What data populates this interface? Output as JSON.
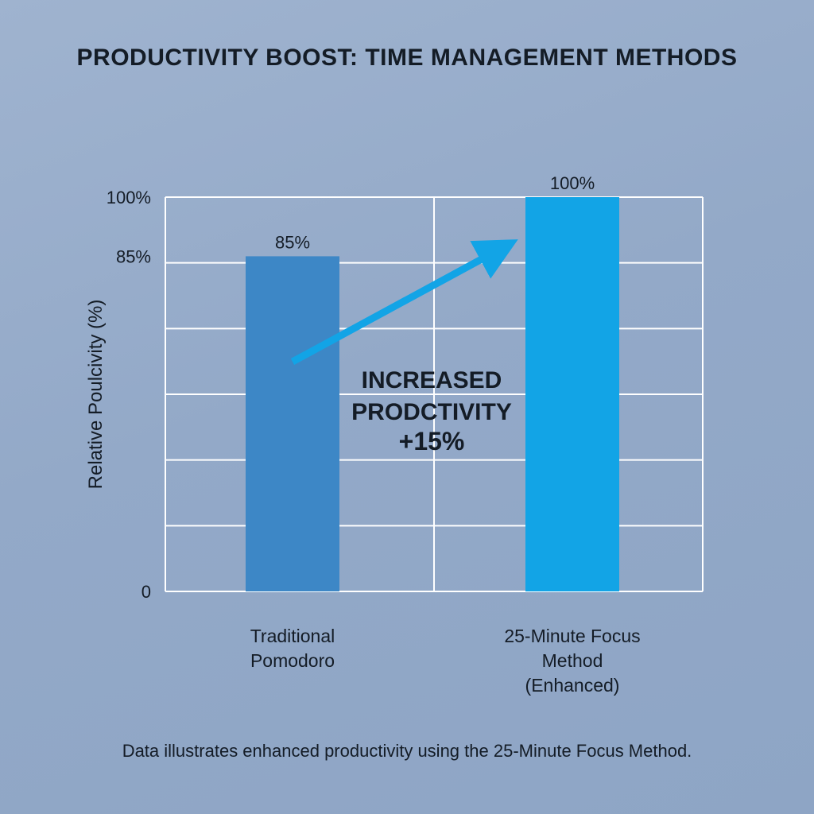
{
  "title": "PRODUCTIVITY BOOST: TIME MANAGEMENT METHODS",
  "caption": "Data illustrates enhanced productivity using the 25-Minute Focus Method.",
  "chart_data": {
    "type": "bar",
    "ylabel": "Relative Poulcivity (%)",
    "xlabel": "",
    "ylim": [
      0,
      100
    ],
    "y_tick_labels": [
      {
        "value": 100,
        "label": "100%"
      },
      {
        "value": 85,
        "label": "85%"
      },
      {
        "value": 0,
        "label": "0"
      }
    ],
    "grid": true,
    "categories": [
      [
        "Traditional",
        "Pomodoro"
      ],
      [
        "25-Minute Focus",
        "Method",
        "(Enhanced)"
      ]
    ],
    "values": [
      85,
      100
    ],
    "data_labels": [
      "85%",
      "100%"
    ],
    "bar_colors": [
      "#3d87c6",
      "#12a4e6"
    ],
    "annotation": {
      "lines": [
        "INCREASED",
        "PRODCTIVITY",
        "+15%"
      ],
      "arrow_color": "#12a4e6"
    }
  },
  "colors": {
    "background": "#97adcb",
    "grid": "#ffffff",
    "text": "#141c26"
  }
}
